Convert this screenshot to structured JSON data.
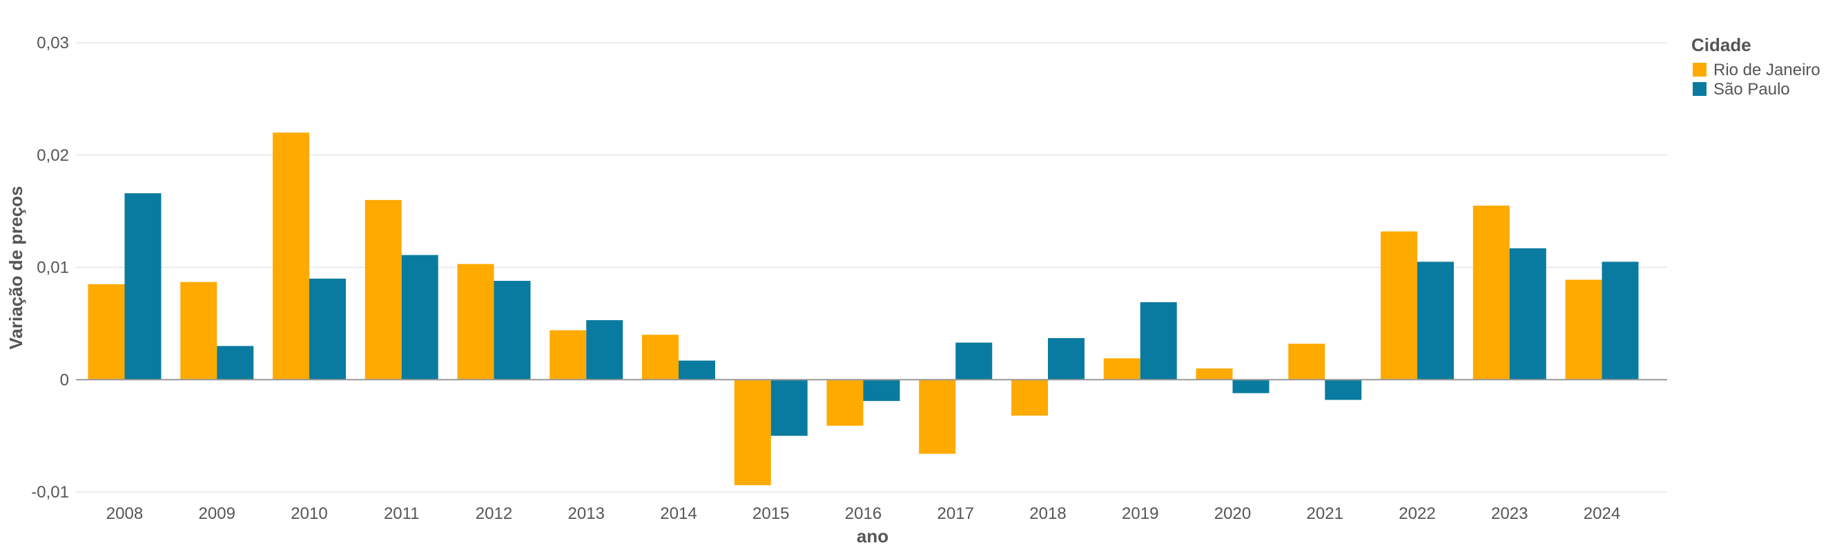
{
  "chart_data": {
    "type": "bar",
    "title": "",
    "xlabel": "ano",
    "ylabel": "Variação de preços",
    "categories": [
      "2008",
      "2009",
      "2010",
      "2011",
      "2012",
      "2013",
      "2014",
      "2015",
      "2016",
      "2017",
      "2018",
      "2019",
      "2020",
      "2021",
      "2022",
      "2023",
      "2024"
    ],
    "series": [
      {
        "name": "Rio de Janeiro",
        "color": "#FFAA00",
        "values": [
          0.0085,
          0.0087,
          0.022,
          0.016,
          0.0103,
          0.0044,
          0.004,
          -0.0094,
          -0.0041,
          -0.0066,
          -0.0032,
          0.0019,
          0.001,
          0.0032,
          0.0132,
          0.0155,
          0.0089
        ]
      },
      {
        "name": "São Paulo",
        "color": "#0A7BA0",
        "values": [
          0.0166,
          0.003,
          0.009,
          0.0111,
          0.0088,
          0.0053,
          0.0017,
          -0.005,
          -0.0019,
          0.0033,
          0.0037,
          0.0069,
          -0.0012,
          -0.0018,
          0.0105,
          0.0117,
          0.0105
        ]
      }
    ],
    "ylim": [
      -0.01,
      0.03
    ],
    "yticks": [
      -0.01,
      0,
      0.01,
      0.02,
      0.03
    ],
    "ytick_labels": [
      "-0,01",
      "0",
      "0,01",
      "0,02",
      "0,03"
    ],
    "grid": true,
    "legend": {
      "title": "Cidade",
      "position": "top-right"
    }
  }
}
